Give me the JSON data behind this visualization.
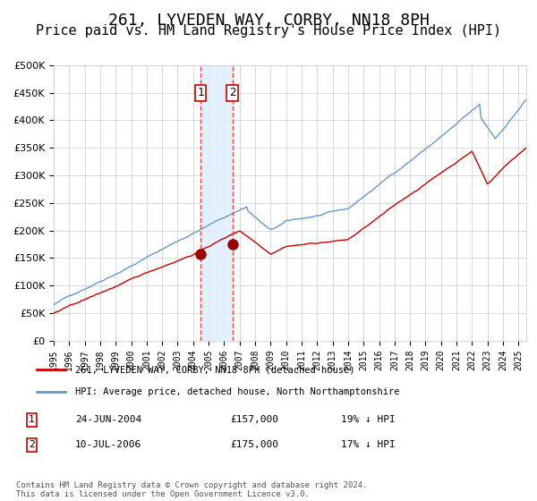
{
  "title": "261, LYVEDEN WAY, CORBY, NN18 8PH",
  "subtitle": "Price paid vs. HM Land Registry's House Price Index (HPI)",
  "legend_red": "261, LYVEDEN WAY, CORBY, NN18 8PH (detached house)",
  "legend_blue": "HPI: Average price, detached house, North Northamptonshire",
  "footnote": "Contains HM Land Registry data © Crown copyright and database right 2024.\nThis data is licensed under the Open Government Licence v3.0.",
  "table_rows": [
    {
      "num": "1",
      "date": "24-JUN-2004",
      "price": "£157,000",
      "hpi": "19% ↓ HPI"
    },
    {
      "num": "2",
      "date": "10-JUL-2006",
      "price": "£175,000",
      "hpi": "17% ↓ HPI"
    }
  ],
  "sale1_x": 2004.48,
  "sale1_y": 157000,
  "sale2_x": 2006.53,
  "sale2_y": 175000,
  "red_color": "#cc0000",
  "blue_color": "#6699cc",
  "marker_color": "#990000",
  "vline_color": "#ff4444",
  "shade_color": "#ddeeff",
  "grid_color": "#cccccc",
  "bg_color": "#ffffff",
  "ylim": [
    0,
    500000
  ],
  "xlim_start": 1995,
  "xlim_end": 2025.5,
  "title_fontsize": 13,
  "subtitle_fontsize": 11
}
